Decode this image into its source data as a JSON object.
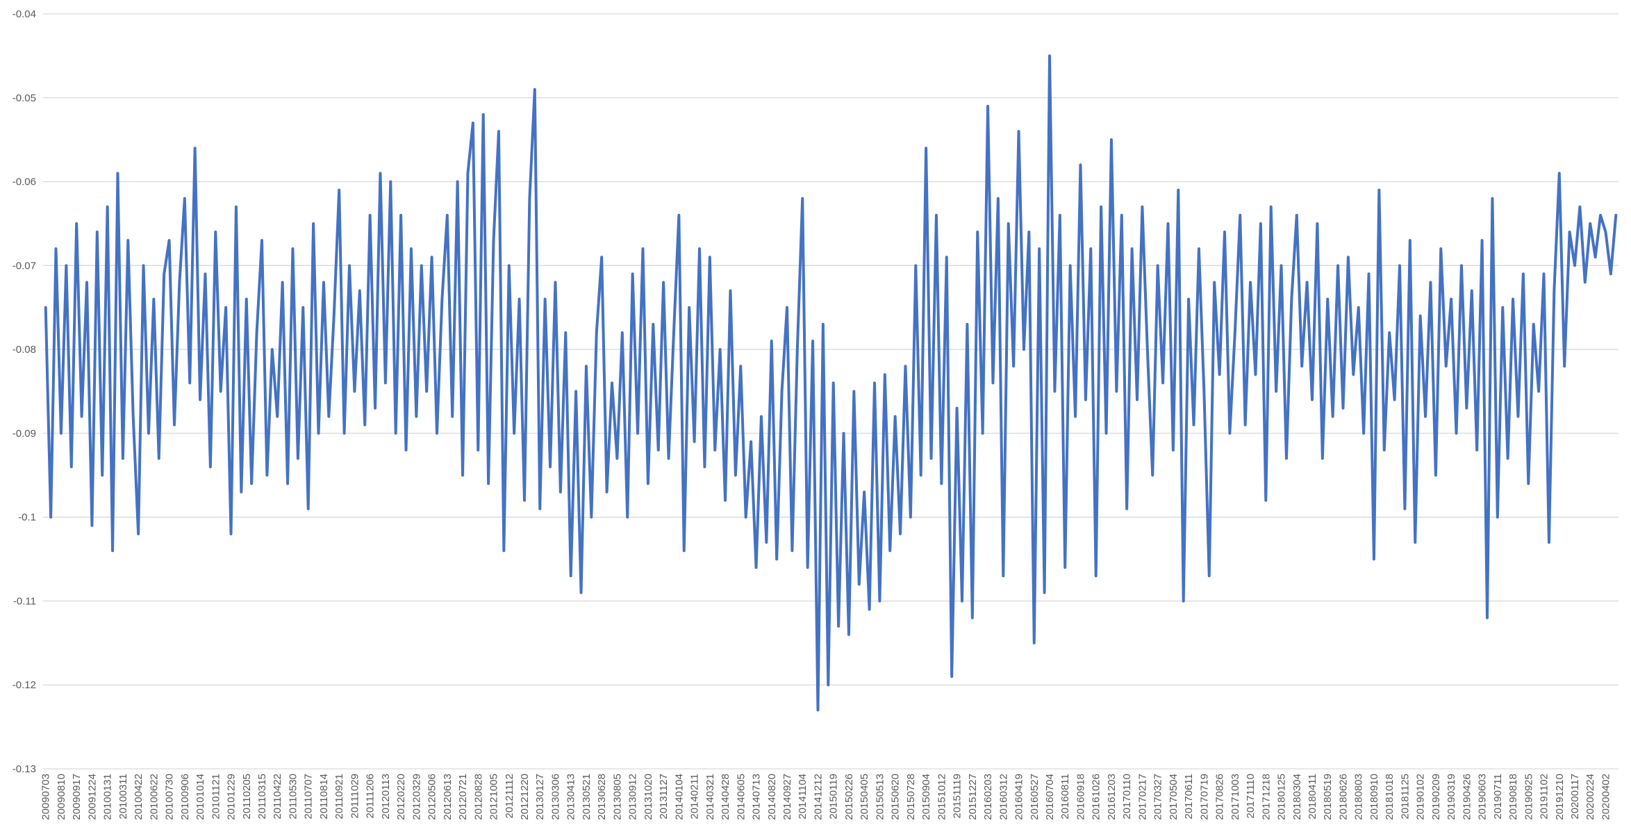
{
  "chart_data": {
    "type": "line",
    "color": "#4472c4",
    "grid": true,
    "ylim": [
      -0.13,
      -0.04
    ],
    "yticks": [
      -0.04,
      -0.05,
      -0.06,
      -0.07,
      -0.08,
      -0.09,
      -0.1,
      -0.11,
      -0.12,
      -0.13
    ],
    "categories": [
      "20090703",
      null,
      null,
      "20090810",
      null,
      null,
      "20090917",
      null,
      null,
      "20091224",
      null,
      null,
      "20100131",
      null,
      null,
      "20100311",
      null,
      null,
      "20100422",
      null,
      null,
      "20100622",
      null,
      null,
      "20100730",
      null,
      null,
      "20100906",
      null,
      null,
      "20101014",
      null,
      null,
      "20101121",
      null,
      null,
      "20101229",
      null,
      null,
      "20110205",
      null,
      null,
      "20110315",
      null,
      null,
      "20110422",
      null,
      null,
      "20110530",
      null,
      null,
      "20110707",
      null,
      null,
      "20110814",
      null,
      null,
      "20110921",
      null,
      null,
      "20111029",
      null,
      null,
      "20111206",
      null,
      null,
      "20120113",
      null,
      null,
      "20120220",
      null,
      null,
      "20120329",
      null,
      null,
      "20120506",
      null,
      null,
      "20120613",
      null,
      null,
      "20120721",
      null,
      null,
      "20120828",
      null,
      null,
      "20121005",
      null,
      null,
      "20121112",
      null,
      null,
      "20121220",
      null,
      null,
      "20130127",
      null,
      null,
      "20130306",
      null,
      null,
      "20130413",
      null,
      null,
      "20130521",
      null,
      null,
      "20130628",
      null,
      null,
      "20130805",
      null,
      null,
      "20130912",
      null,
      null,
      "20131020",
      null,
      null,
      "20131127",
      null,
      null,
      "20140104",
      null,
      null,
      "20140211",
      null,
      null,
      "20140321",
      null,
      null,
      "20140428",
      null,
      null,
      "20140605",
      null,
      null,
      "20140713",
      null,
      null,
      "20140820",
      null,
      null,
      "20140927",
      null,
      null,
      "20141104",
      null,
      null,
      "20141212",
      null,
      null,
      "20150119",
      null,
      null,
      "20150226",
      null,
      null,
      "20150405",
      null,
      null,
      "20150513",
      null,
      null,
      "20150620",
      null,
      null,
      "20150728",
      null,
      null,
      "20150904",
      null,
      null,
      "20151012",
      null,
      null,
      "20151119",
      null,
      null,
      "20151227",
      null,
      null,
      "20160203",
      null,
      null,
      "20160312",
      null,
      null,
      "20160419",
      null,
      null,
      "20160527",
      null,
      null,
      "20160704",
      null,
      null,
      "20160811",
      null,
      null,
      "20160918",
      null,
      null,
      "20161026",
      null,
      null,
      "20161203",
      null,
      null,
      "20170110",
      null,
      null,
      "20170217",
      null,
      null,
      "20170327",
      null,
      null,
      "20170504",
      null,
      null,
      "20170611",
      null,
      null,
      "20170719",
      null,
      null,
      "20170826",
      null,
      null,
      "20171003",
      null,
      null,
      "20171110",
      null,
      null,
      "20171218",
      null,
      null,
      "20180125",
      null,
      null,
      "20180304",
      null,
      null,
      "20180411",
      null,
      null,
      "20180519",
      null,
      null,
      "20180626",
      null,
      null,
      "20180803",
      null,
      null,
      "20180910",
      null,
      null,
      "20181018",
      null,
      null,
      "20181125",
      null,
      null,
      "20190102",
      null,
      null,
      "20190209",
      null,
      null,
      "20190319",
      null,
      null,
      "20190426",
      null,
      null,
      "20190603",
      null,
      null,
      "20190711",
      null,
      null,
      "20190818",
      null,
      null,
      "20190925",
      null,
      null,
      "20191102",
      null,
      null,
      "20191210",
      null,
      null,
      "20200117",
      null,
      null,
      "20200224",
      null,
      null,
      "20200402",
      null,
      null
    ],
    "values": [
      -0.075,
      -0.1,
      -0.068,
      -0.09,
      -0.07,
      -0.094,
      -0.065,
      -0.088,
      -0.072,
      -0.101,
      -0.066,
      -0.095,
      -0.063,
      -0.104,
      -0.059,
      -0.093,
      -0.067,
      -0.088,
      -0.102,
      -0.07,
      -0.09,
      -0.074,
      -0.093,
      -0.071,
      -0.067,
      -0.089,
      -0.072,
      -0.062,
      -0.084,
      -0.056,
      -0.086,
      -0.071,
      -0.094,
      -0.066,
      -0.085,
      -0.075,
      -0.102,
      -0.063,
      -0.097,
      -0.074,
      -0.096,
      -0.078,
      -0.067,
      -0.095,
      -0.08,
      -0.088,
      -0.072,
      -0.096,
      -0.068,
      -0.093,
      -0.075,
      -0.099,
      -0.065,
      -0.09,
      -0.072,
      -0.088,
      -0.076,
      -0.061,
      -0.09,
      -0.07,
      -0.085,
      -0.073,
      -0.089,
      -0.064,
      -0.087,
      -0.059,
      -0.084,
      -0.06,
      -0.09,
      -0.064,
      -0.092,
      -0.068,
      -0.088,
      -0.07,
      -0.085,
      -0.069,
      -0.09,
      -0.074,
      -0.064,
      -0.088,
      -0.06,
      -0.095,
      -0.059,
      -0.053,
      -0.092,
      -0.052,
      -0.096,
      -0.067,
      -0.054,
      -0.104,
      -0.07,
      -0.09,
      -0.074,
      -0.098,
      -0.062,
      -0.049,
      -0.099,
      -0.074,
      -0.094,
      -0.072,
      -0.097,
      -0.078,
      -0.107,
      -0.085,
      -0.109,
      -0.082,
      -0.1,
      -0.078,
      -0.069,
      -0.097,
      -0.084,
      -0.093,
      -0.078,
      -0.1,
      -0.071,
      -0.09,
      -0.068,
      -0.096,
      -0.077,
      -0.092,
      -0.072,
      -0.093,
      -0.078,
      -0.064,
      -0.104,
      -0.075,
      -0.091,
      -0.068,
      -0.094,
      -0.069,
      -0.092,
      -0.08,
      -0.098,
      -0.073,
      -0.095,
      -0.082,
      -0.1,
      -0.091,
      -0.106,
      -0.088,
      -0.103,
      -0.079,
      -0.105,
      -0.085,
      -0.075,
      -0.104,
      -0.08,
      -0.062,
      -0.106,
      -0.079,
      -0.123,
      -0.077,
      -0.12,
      -0.084,
      -0.113,
      -0.09,
      -0.114,
      -0.085,
      -0.108,
      -0.097,
      -0.111,
      -0.084,
      -0.11,
      -0.083,
      -0.104,
      -0.088,
      -0.102,
      -0.082,
      -0.1,
      -0.07,
      -0.095,
      -0.056,
      -0.093,
      -0.064,
      -0.096,
      -0.069,
      -0.119,
      -0.087,
      -0.11,
      -0.077,
      -0.112,
      -0.066,
      -0.09,
      -0.051,
      -0.084,
      -0.062,
      -0.107,
      -0.065,
      -0.082,
      -0.054,
      -0.08,
      -0.066,
      -0.115,
      -0.068,
      -0.109,
      -0.045,
      -0.085,
      -0.064,
      -0.106,
      -0.07,
      -0.088,
      -0.058,
      -0.086,
      -0.068,
      -0.107,
      -0.063,
      -0.09,
      -0.055,
      -0.085,
      -0.064,
      -0.099,
      -0.068,
      -0.086,
      -0.063,
      -0.08,
      -0.095,
      -0.07,
      -0.084,
      -0.065,
      -0.092,
      -0.061,
      -0.11,
      -0.074,
      -0.089,
      -0.068,
      -0.085,
      -0.107,
      -0.072,
      -0.083,
      -0.066,
      -0.09,
      -0.078,
      -0.064,
      -0.089,
      -0.072,
      -0.083,
      -0.065,
      -0.098,
      -0.063,
      -0.085,
      -0.07,
      -0.093,
      -0.074,
      -0.064,
      -0.082,
      -0.072,
      -0.086,
      -0.065,
      -0.093,
      -0.074,
      -0.088,
      -0.07,
      -0.087,
      -0.069,
      -0.083,
      -0.075,
      -0.09,
      -0.071,
      -0.105,
      -0.061,
      -0.092,
      -0.078,
      -0.086,
      -0.07,
      -0.099,
      -0.067,
      -0.103,
      -0.076,
      -0.088,
      -0.072,
      -0.095,
      -0.068,
      -0.082,
      -0.074,
      -0.09,
      -0.07,
      -0.087,
      -0.073,
      -0.092,
      -0.067,
      -0.112,
      -0.062,
      -0.1,
      -0.075,
      -0.093,
      -0.074,
      -0.088,
      -0.071,
      -0.096,
      -0.077,
      -0.085,
      -0.071,
      -0.103,
      -0.073,
      -0.059,
      -0.082,
      -0.066,
      -0.07,
      -0.063,
      -0.072,
      -0.065,
      -0.069,
      -0.064,
      -0.066,
      -0.071,
      -0.064
    ]
  }
}
